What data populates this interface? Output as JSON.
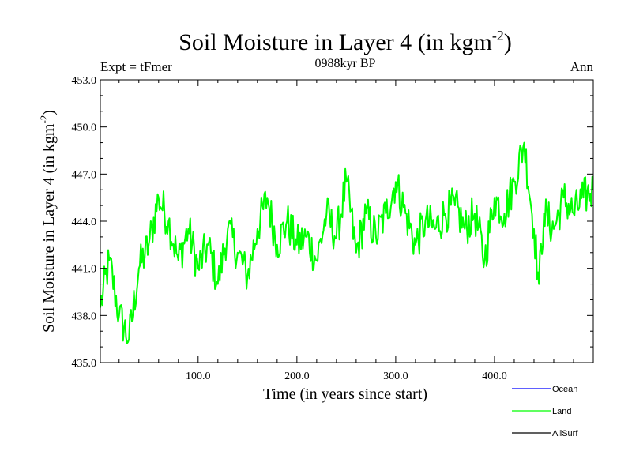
{
  "header": {
    "title_main": "Soil Moisture in Layer 4 (in kgm",
    "title_sup": "-2",
    "title_close": ")",
    "left_label": "Expt = tFmer",
    "center_label": "0988kyr BP",
    "right_label": "Ann"
  },
  "colors": {
    "ocean": "#0000ff",
    "land": "#00ff00",
    "allsurf": "#000000",
    "axis": "#000000"
  },
  "chart_data": {
    "type": "line",
    "title": "Soil Moisture in Layer 4 (in kgm-2)",
    "xlabel": "Time (in years since start)",
    "ylabel_main": "Soil Moisture in Layer 4 (in kgm",
    "ylabel_sup": "-2",
    "ylabel_close": ")",
    "xlim": [
      1,
      500
    ],
    "ylim": [
      435.0,
      453.0
    ],
    "xticks": [
      100,
      200,
      300,
      400
    ],
    "xtick_labels": [
      "100.0",
      "200.0",
      "300.0",
      "400.0"
    ],
    "yticks": [
      435,
      438,
      441,
      444,
      447,
      450,
      453
    ],
    "ytick_labels": [
      "435.0",
      "438.0",
      "441.0",
      "444.0",
      "447.0",
      "450.0",
      "453.0"
    ],
    "legend": [
      "Ocean",
      "Land",
      "AllSurf"
    ],
    "series": [
      {
        "name": "Land",
        "x": [
          1,
          10,
          20,
          30,
          40,
          50,
          60,
          70,
          80,
          90,
          100,
          110,
          120,
          130,
          140,
          150,
          160,
          170,
          180,
          190,
          200,
          210,
          220,
          230,
          240,
          250,
          260,
          270,
          280,
          290,
          300,
          310,
          320,
          330,
          340,
          350,
          360,
          370,
          380,
          390,
          400,
          410,
          420,
          430,
          440,
          445,
          450,
          460,
          470,
          480,
          490,
          500
        ],
        "values": [
          438.5,
          441.5,
          438.0,
          436.5,
          441.0,
          442.5,
          445.5,
          444.0,
          441.5,
          443.5,
          441.0,
          442.5,
          440.0,
          443.5,
          442.0,
          440.5,
          443.5,
          445.5,
          442.5,
          444.0,
          442.5,
          443.0,
          441.5,
          444.5,
          443.0,
          446.5,
          442.0,
          444.5,
          443.0,
          444.5,
          446.5,
          444.5,
          442.5,
          444.0,
          443.5,
          444.5,
          445.0,
          443.5,
          444.5,
          441.5,
          445.5,
          444.5,
          446.5,
          449.0,
          443.5,
          440.0,
          444.5,
          443.5,
          445.5,
          444.5,
          445.5,
          446.0
        ]
      }
    ]
  }
}
